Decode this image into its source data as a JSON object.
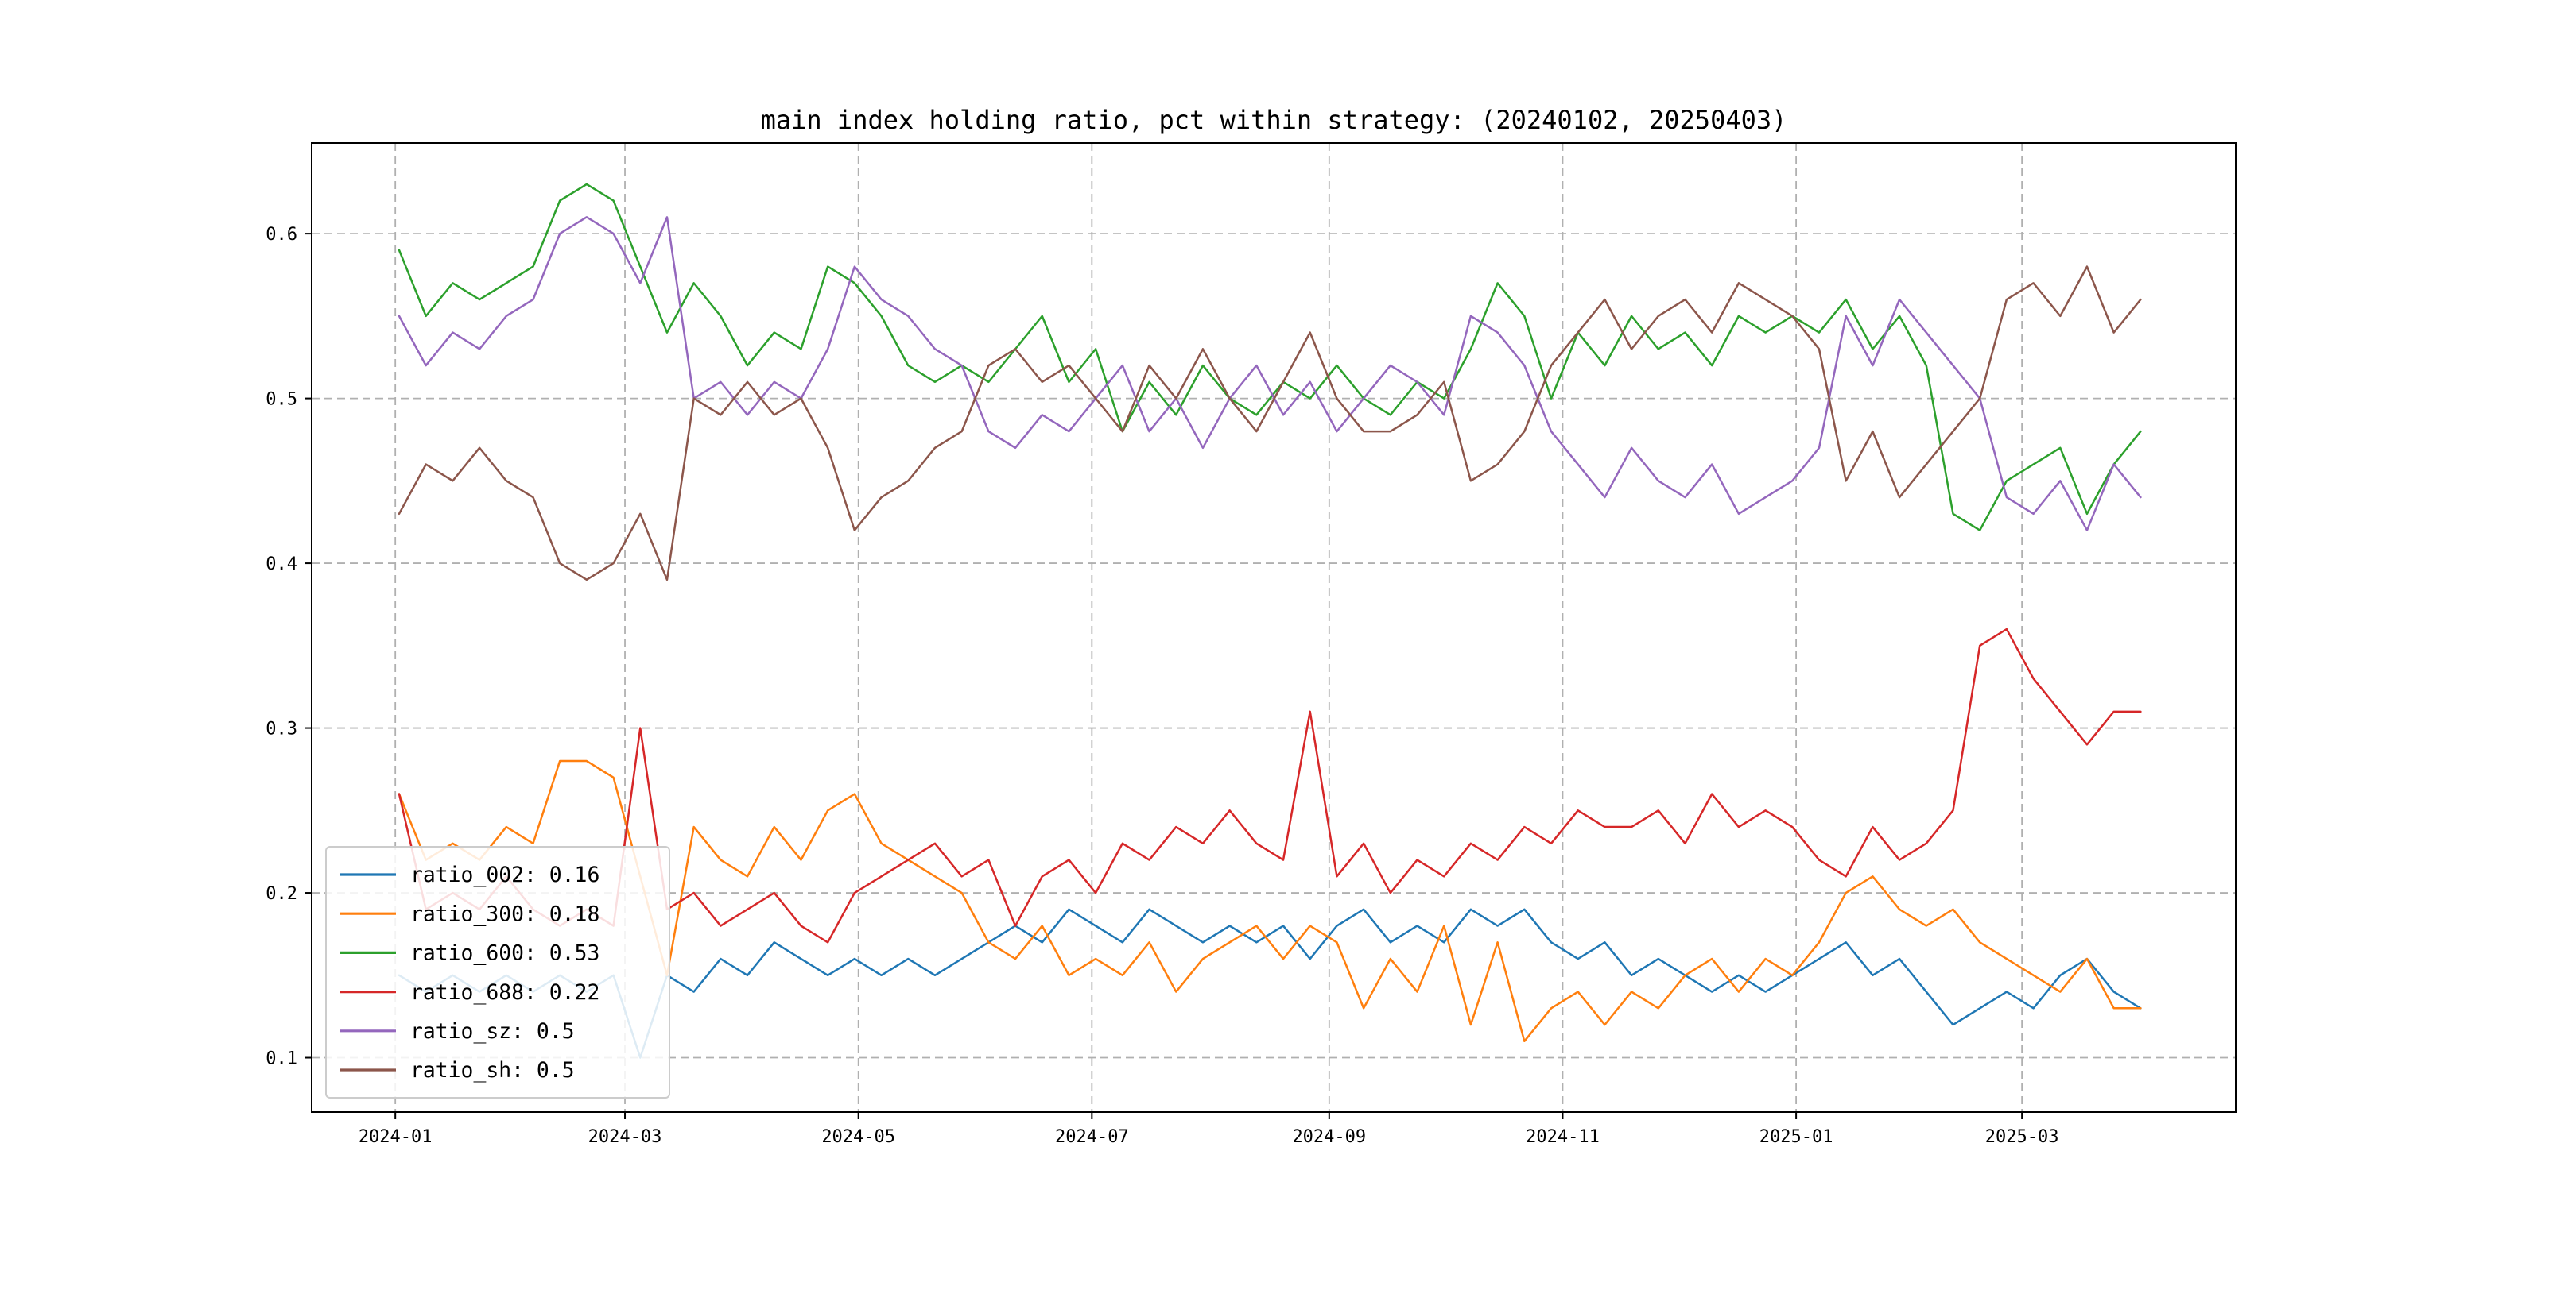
{
  "page": {
    "background_color": "#ffffff"
  },
  "chart_data": {
    "type": "line",
    "title": "main index holding ratio, pct within strategy: (20240102, 20250403)",
    "xlabel": "",
    "ylabel": "",
    "grid": {
      "on": true,
      "style": "dashed",
      "color": "#b0b0b0"
    },
    "legend_position": "lower-left",
    "x_start_date": "2024-01-02",
    "x_end_date": "2025-04-03",
    "ylim": [
      0.067,
      0.655
    ],
    "y_ticks": [
      0.1,
      0.2,
      0.3,
      0.4,
      0.5,
      0.6
    ],
    "x_ticks": [
      {
        "label": "2024-01",
        "date": "2024-01-01"
      },
      {
        "label": "2024-03",
        "date": "2024-03-01"
      },
      {
        "label": "2024-05",
        "date": "2024-05-01"
      },
      {
        "label": "2024-07",
        "date": "2024-07-01"
      },
      {
        "label": "2024-09",
        "date": "2024-09-01"
      },
      {
        "label": "2024-11",
        "date": "2024-11-01"
      },
      {
        "label": "2025-01",
        "date": "2025-01-01"
      },
      {
        "label": "2025-03",
        "date": "2025-03-01"
      }
    ],
    "x_dates": [
      "2024-01-02",
      "2024-01-09",
      "2024-01-16",
      "2024-01-23",
      "2024-01-30",
      "2024-02-06",
      "2024-02-13",
      "2024-02-20",
      "2024-02-27",
      "2024-03-05",
      "2024-03-12",
      "2024-03-19",
      "2024-03-26",
      "2024-04-02",
      "2024-04-09",
      "2024-04-16",
      "2024-04-23",
      "2024-04-30",
      "2024-05-07",
      "2024-05-14",
      "2024-05-21",
      "2024-05-28",
      "2024-06-04",
      "2024-06-11",
      "2024-06-18",
      "2024-06-25",
      "2024-07-02",
      "2024-07-09",
      "2024-07-16",
      "2024-07-23",
      "2024-07-30",
      "2024-08-06",
      "2024-08-13",
      "2024-08-20",
      "2024-08-27",
      "2024-09-03",
      "2024-09-10",
      "2024-09-17",
      "2024-09-24",
      "2024-10-01",
      "2024-10-08",
      "2024-10-15",
      "2024-10-22",
      "2024-10-29",
      "2024-11-05",
      "2024-11-12",
      "2024-11-19",
      "2024-11-26",
      "2024-12-03",
      "2024-12-10",
      "2024-12-17",
      "2024-12-24",
      "2024-12-31",
      "2025-01-07",
      "2025-01-14",
      "2025-01-21",
      "2025-01-28",
      "2025-02-04",
      "2025-02-11",
      "2025-02-18",
      "2025-02-25",
      "2025-03-04",
      "2025-03-11",
      "2025-03-18",
      "2025-03-25",
      "2025-04-01"
    ],
    "series": [
      {
        "name": "ratio_002",
        "legend_label": "ratio_002: 0.16",
        "color": "#1f77b4",
        "values": [
          0.15,
          0.14,
          0.15,
          0.14,
          0.15,
          0.14,
          0.15,
          0.14,
          0.15,
          0.1,
          0.15,
          0.14,
          0.16,
          0.15,
          0.17,
          0.16,
          0.15,
          0.16,
          0.15,
          0.16,
          0.15,
          0.16,
          0.17,
          0.18,
          0.17,
          0.19,
          0.18,
          0.17,
          0.19,
          0.18,
          0.17,
          0.18,
          0.17,
          0.18,
          0.16,
          0.18,
          0.19,
          0.17,
          0.18,
          0.17,
          0.19,
          0.18,
          0.19,
          0.17,
          0.16,
          0.17,
          0.15,
          0.16,
          0.15,
          0.14,
          0.15,
          0.14,
          0.15,
          0.16,
          0.17,
          0.15,
          0.16,
          0.14,
          0.12,
          0.13,
          0.14,
          0.13,
          0.15,
          0.16,
          0.14,
          0.13
        ]
      },
      {
        "name": "ratio_300",
        "legend_label": "ratio_300: 0.18",
        "color": "#ff7f0e",
        "values": [
          0.26,
          0.22,
          0.23,
          0.22,
          0.24,
          0.23,
          0.28,
          0.28,
          0.27,
          0.21,
          0.15,
          0.24,
          0.22,
          0.21,
          0.24,
          0.22,
          0.25,
          0.26,
          0.23,
          0.22,
          0.21,
          0.2,
          0.17,
          0.16,
          0.18,
          0.15,
          0.16,
          0.15,
          0.17,
          0.14,
          0.16,
          0.17,
          0.18,
          0.16,
          0.18,
          0.17,
          0.13,
          0.16,
          0.14,
          0.18,
          0.12,
          0.17,
          0.11,
          0.13,
          0.14,
          0.12,
          0.14,
          0.13,
          0.15,
          0.16,
          0.14,
          0.16,
          0.15,
          0.17,
          0.2,
          0.21,
          0.19,
          0.18,
          0.19,
          0.17,
          0.16,
          0.15,
          0.14,
          0.16,
          0.13,
          0.13
        ]
      },
      {
        "name": "ratio_600",
        "legend_label": "ratio_600: 0.53",
        "color": "#2ca02c",
        "values": [
          0.59,
          0.55,
          0.57,
          0.56,
          0.57,
          0.58,
          0.62,
          0.63,
          0.62,
          0.58,
          0.54,
          0.57,
          0.55,
          0.52,
          0.54,
          0.53,
          0.58,
          0.57,
          0.55,
          0.52,
          0.51,
          0.52,
          0.51,
          0.53,
          0.55,
          0.51,
          0.53,
          0.48,
          0.51,
          0.49,
          0.52,
          0.5,
          0.49,
          0.51,
          0.5,
          0.52,
          0.5,
          0.49,
          0.51,
          0.5,
          0.53,
          0.57,
          0.55,
          0.5,
          0.54,
          0.52,
          0.55,
          0.53,
          0.54,
          0.52,
          0.55,
          0.54,
          0.55,
          0.54,
          0.56,
          0.53,
          0.55,
          0.52,
          0.43,
          0.42,
          0.45,
          0.46,
          0.47,
          0.43,
          0.46,
          0.48
        ]
      },
      {
        "name": "ratio_688",
        "legend_label": "ratio_688: 0.22",
        "color": "#d62728",
        "values": [
          0.26,
          0.19,
          0.2,
          0.19,
          0.21,
          0.19,
          0.18,
          0.19,
          0.18,
          0.3,
          0.19,
          0.2,
          0.18,
          0.19,
          0.2,
          0.18,
          0.17,
          0.2,
          0.21,
          0.22,
          0.23,
          0.21,
          0.22,
          0.18,
          0.21,
          0.22,
          0.2,
          0.23,
          0.22,
          0.24,
          0.23,
          0.25,
          0.23,
          0.22,
          0.31,
          0.21,
          0.23,
          0.2,
          0.22,
          0.21,
          0.23,
          0.22,
          0.24,
          0.23,
          0.25,
          0.24,
          0.24,
          0.25,
          0.23,
          0.26,
          0.24,
          0.25,
          0.24,
          0.22,
          0.21,
          0.24,
          0.22,
          0.23,
          0.25,
          0.35,
          0.36,
          0.33,
          0.31,
          0.29,
          0.31,
          0.31
        ]
      },
      {
        "name": "ratio_sz",
        "legend_label": "ratio_sz: 0.5",
        "color": "#9467bd",
        "values": [
          0.55,
          0.52,
          0.54,
          0.53,
          0.55,
          0.56,
          0.6,
          0.61,
          0.6,
          0.57,
          0.61,
          0.5,
          0.51,
          0.49,
          0.51,
          0.5,
          0.53,
          0.58,
          0.56,
          0.55,
          0.53,
          0.52,
          0.48,
          0.47,
          0.49,
          0.48,
          0.5,
          0.52,
          0.48,
          0.5,
          0.47,
          0.5,
          0.52,
          0.49,
          0.51,
          0.48,
          0.5,
          0.52,
          0.51,
          0.49,
          0.55,
          0.54,
          0.52,
          0.48,
          0.46,
          0.44,
          0.47,
          0.45,
          0.44,
          0.46,
          0.43,
          0.44,
          0.45,
          0.47,
          0.55,
          0.52,
          0.56,
          0.54,
          0.52,
          0.5,
          0.44,
          0.43,
          0.45,
          0.42,
          0.46,
          0.44
        ]
      },
      {
        "name": "ratio_sh",
        "legend_label": "ratio_sh: 0.5",
        "color": "#8c564b",
        "values": [
          0.43,
          0.46,
          0.45,
          0.47,
          0.45,
          0.44,
          0.4,
          0.39,
          0.4,
          0.43,
          0.39,
          0.5,
          0.49,
          0.51,
          0.49,
          0.5,
          0.47,
          0.42,
          0.44,
          0.45,
          0.47,
          0.48,
          0.52,
          0.53,
          0.51,
          0.52,
          0.5,
          0.48,
          0.52,
          0.5,
          0.53,
          0.5,
          0.48,
          0.51,
          0.54,
          0.5,
          0.48,
          0.48,
          0.49,
          0.51,
          0.45,
          0.46,
          0.48,
          0.52,
          0.54,
          0.56,
          0.53,
          0.55,
          0.56,
          0.54,
          0.57,
          0.56,
          0.55,
          0.53,
          0.45,
          0.48,
          0.44,
          0.46,
          0.48,
          0.5,
          0.56,
          0.57,
          0.55,
          0.58,
          0.54,
          0.56
        ]
      }
    ]
  }
}
